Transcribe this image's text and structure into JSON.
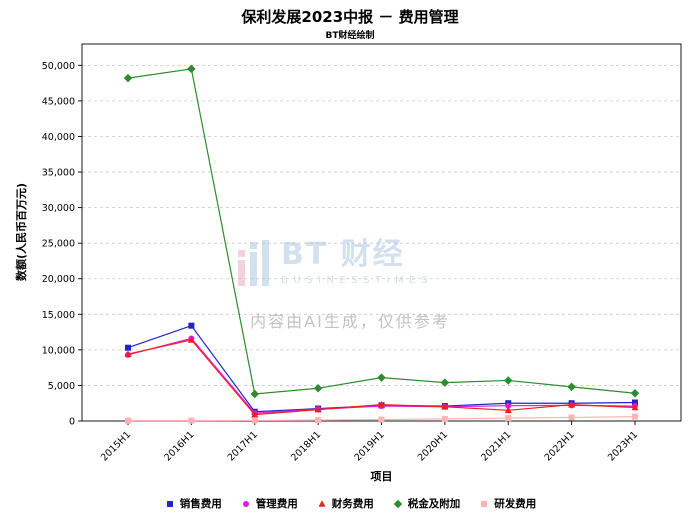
{
  "chart_data": {
    "type": "line",
    "title": "保利发展2023中报 － 费用管理",
    "subtitle": "BT财经绘制",
    "xlabel": "项目",
    "ylabel": "数额(人民币百万元)",
    "categories": [
      "2015H1",
      "2016H1",
      "2017H1",
      "2018H1",
      "2019H1",
      "2020H1",
      "2021H1",
      "2022H1",
      "2023H1"
    ],
    "ylim": [
      0,
      53000
    ],
    "yticks": [
      0,
      5000,
      10000,
      15000,
      20000,
      25000,
      30000,
      35000,
      40000,
      45000,
      50000
    ],
    "grid": true,
    "legend_position": "bottom",
    "series": [
      {
        "name": "销售费用",
        "color": "#2323cc",
        "marker": "square",
        "values": [
          10300,
          13400,
          1300,
          1750,
          2200,
          2100,
          2500,
          2500,
          2600
        ]
      },
      {
        "name": "管理费用",
        "color": "#e01ae0",
        "marker": "circle",
        "values": [
          9300,
          11600,
          1100,
          1650,
          2100,
          2000,
          2150,
          2200,
          2100
        ]
      },
      {
        "name": "财务费用",
        "color": "#f02020",
        "marker": "triangle",
        "values": [
          9400,
          11400,
          900,
          1600,
          2300,
          2000,
          1500,
          2300,
          1900
        ]
      },
      {
        "name": "税金及附加",
        "color": "#2e8b2e",
        "marker": "diamond",
        "values": [
          48200,
          49500,
          3800,
          4600,
          6100,
          5400,
          5700,
          4800,
          3900
        ]
      },
      {
        "name": "研发费用",
        "color": "#ffb3b3",
        "marker": "square",
        "values": [
          50,
          50,
          80,
          120,
          200,
          300,
          400,
          500,
          620
        ]
      }
    ]
  },
  "watermark": {
    "logo_text": "BT 财经",
    "logo_subtext": "BUSINESSTIMES",
    "ai_text": "内容由AI生成，仅供参考"
  }
}
